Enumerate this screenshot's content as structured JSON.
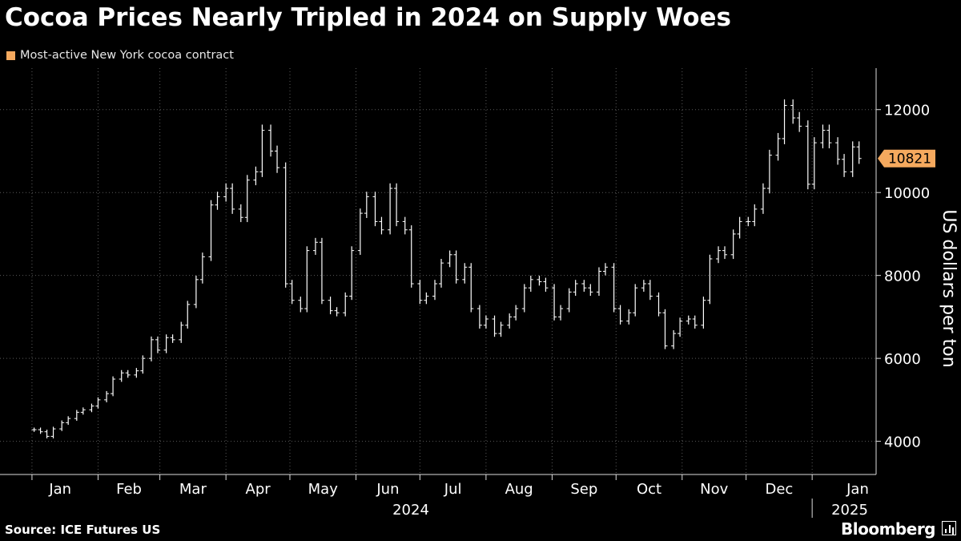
{
  "header": {
    "title": "Cocoa Prices Nearly Tripled in 2024 on Supply Woes",
    "legend_label": "Most-active New York cocoa contract",
    "legend_color": "#f5a95e"
  },
  "footer": {
    "source": "Source: ICE Futures US",
    "brand": "Bloomberg",
    "brand_icon": "bloomberg-terminal-icon"
  },
  "chart_data": {
    "type": "line",
    "style": "ohlc-bars",
    "title": "Cocoa Prices Nearly Tripled in 2024 on Supply Woes",
    "ylabel": "US dollars per ton",
    "ylim": [
      3200,
      13000
    ],
    "yticks": [
      4000,
      6000,
      8000,
      10000,
      12000
    ],
    "grid": true,
    "legend_position": "top-left",
    "x_month_labels": [
      "Jan",
      "Feb",
      "Mar",
      "Apr",
      "May",
      "Jun",
      "Jul",
      "Aug",
      "Sep",
      "Oct",
      "Nov",
      "Dec",
      "Jan"
    ],
    "x_year_labels": [
      "2024",
      "2025"
    ],
    "last_value_label": "10821",
    "last_value_color": "#f5a95e",
    "line_color": "#ffffff",
    "series": [
      {
        "name": "Most-active New York cocoa contract",
        "points": [
          [
            "2024-01-02",
            4280
          ],
          [
            "2024-01-05",
            4230
          ],
          [
            "2024-01-08",
            4120
          ],
          [
            "2024-01-11",
            4300
          ],
          [
            "2024-01-15",
            4450
          ],
          [
            "2024-01-18",
            4550
          ],
          [
            "2024-01-22",
            4700
          ],
          [
            "2024-01-25",
            4760
          ],
          [
            "2024-01-29",
            4850
          ],
          [
            "2024-02-01",
            5000
          ],
          [
            "2024-02-05",
            5150
          ],
          [
            "2024-02-08",
            5500
          ],
          [
            "2024-02-12",
            5650
          ],
          [
            "2024-02-15",
            5600
          ],
          [
            "2024-02-19",
            5700
          ],
          [
            "2024-02-22",
            6000
          ],
          [
            "2024-02-26",
            6450
          ],
          [
            "2024-02-29",
            6200
          ],
          [
            "2024-03-04",
            6500
          ],
          [
            "2024-03-07",
            6450
          ],
          [
            "2024-03-11",
            6800
          ],
          [
            "2024-03-14",
            7300
          ],
          [
            "2024-03-18",
            7900
          ],
          [
            "2024-03-21",
            8450
          ],
          [
            "2024-03-25",
            9700
          ],
          [
            "2024-03-28",
            9900
          ],
          [
            "2024-04-01",
            10100
          ],
          [
            "2024-04-04",
            9600
          ],
          [
            "2024-04-08",
            9400
          ],
          [
            "2024-04-11",
            10300
          ],
          [
            "2024-04-15",
            10500
          ],
          [
            "2024-04-18",
            11500
          ],
          [
            "2024-04-22",
            11000
          ],
          [
            "2024-04-25",
            10600
          ],
          [
            "2024-04-29",
            7800
          ],
          [
            "2024-05-02",
            7400
          ],
          [
            "2024-05-06",
            7200
          ],
          [
            "2024-05-09",
            8600
          ],
          [
            "2024-05-13",
            8800
          ],
          [
            "2024-05-16",
            7400
          ],
          [
            "2024-05-20",
            7150
          ],
          [
            "2024-05-23",
            7100
          ],
          [
            "2024-05-27",
            7500
          ],
          [
            "2024-05-30",
            8600
          ],
          [
            "2024-06-03",
            9500
          ],
          [
            "2024-06-06",
            9900
          ],
          [
            "2024-06-10",
            9300
          ],
          [
            "2024-06-13",
            9100
          ],
          [
            "2024-06-17",
            10100
          ],
          [
            "2024-06-20",
            9300
          ],
          [
            "2024-06-24",
            9100
          ],
          [
            "2024-06-27",
            7800
          ],
          [
            "2024-07-01",
            7400
          ],
          [
            "2024-07-04",
            7500
          ],
          [
            "2024-07-08",
            7800
          ],
          [
            "2024-07-11",
            8300
          ],
          [
            "2024-07-15",
            8500
          ],
          [
            "2024-07-18",
            7900
          ],
          [
            "2024-07-22",
            8200
          ],
          [
            "2024-07-25",
            7200
          ],
          [
            "2024-07-29",
            6800
          ],
          [
            "2024-08-01",
            6950
          ],
          [
            "2024-08-05",
            6600
          ],
          [
            "2024-08-08",
            6800
          ],
          [
            "2024-08-12",
            7000
          ],
          [
            "2024-08-15",
            7200
          ],
          [
            "2024-08-19",
            7700
          ],
          [
            "2024-08-22",
            7900
          ],
          [
            "2024-08-26",
            7850
          ],
          [
            "2024-08-29",
            7700
          ],
          [
            "2024-09-02",
            7000
          ],
          [
            "2024-09-05",
            7200
          ],
          [
            "2024-09-09",
            7600
          ],
          [
            "2024-09-12",
            7800
          ],
          [
            "2024-09-16",
            7700
          ],
          [
            "2024-09-19",
            7600
          ],
          [
            "2024-09-23",
            8100
          ],
          [
            "2024-09-26",
            8200
          ],
          [
            "2024-09-30",
            7200
          ],
          [
            "2024-10-03",
            6900
          ],
          [
            "2024-10-07",
            7100
          ],
          [
            "2024-10-10",
            7700
          ],
          [
            "2024-10-14",
            7800
          ],
          [
            "2024-10-17",
            7500
          ],
          [
            "2024-10-21",
            7100
          ],
          [
            "2024-10-24",
            6300
          ],
          [
            "2024-10-28",
            6600
          ],
          [
            "2024-10-31",
            6900
          ],
          [
            "2024-11-04",
            6950
          ],
          [
            "2024-11-07",
            6800
          ],
          [
            "2024-11-11",
            7400
          ],
          [
            "2024-11-14",
            8400
          ],
          [
            "2024-11-18",
            8600
          ],
          [
            "2024-11-21",
            8500
          ],
          [
            "2024-11-25",
            9000
          ],
          [
            "2024-11-28",
            9300
          ],
          [
            "2024-12-02",
            9300
          ],
          [
            "2024-12-05",
            9600
          ],
          [
            "2024-12-09",
            10100
          ],
          [
            "2024-12-12",
            10900
          ],
          [
            "2024-12-16",
            11300
          ],
          [
            "2024-12-19",
            12100
          ],
          [
            "2024-12-23",
            11800
          ],
          [
            "2024-12-26",
            11600
          ],
          [
            "2024-12-30",
            10200
          ],
          [
            "2025-01-02",
            11200
          ],
          [
            "2025-01-06",
            11500
          ],
          [
            "2025-01-09",
            11200
          ],
          [
            "2025-01-13",
            10800
          ],
          [
            "2025-01-16",
            10500
          ],
          [
            "2025-01-20",
            11100
          ],
          [
            "2025-01-23",
            10821
          ]
        ]
      }
    ]
  }
}
